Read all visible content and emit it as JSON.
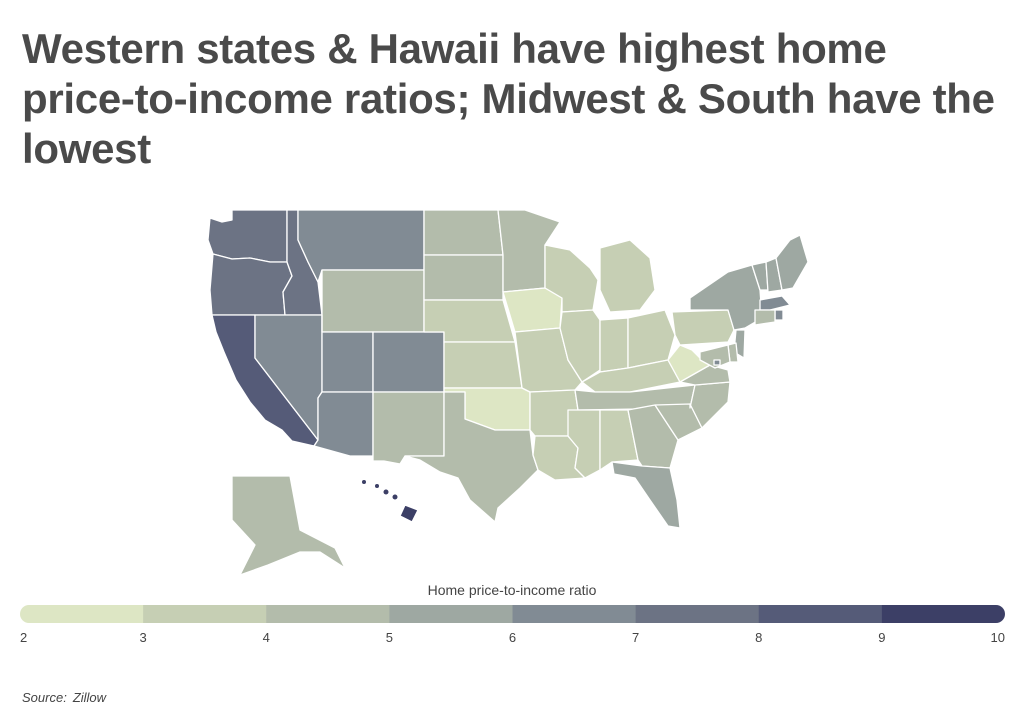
{
  "title": "Western states & Hawaii have highest home price-to-income ratios; Midwest & South have the lowest",
  "legend": {
    "title": "Home price-to-income ratio",
    "ticks": [
      "2",
      "3",
      "4",
      "5",
      "6",
      "7",
      "8",
      "9",
      "10"
    ]
  },
  "source": {
    "label": "Source:",
    "value": "Zillow"
  },
  "colors": {
    "scale": [
      "#dde6c4",
      "#c6cfb4",
      "#b3bcab",
      "#9ea8a2",
      "#818b94",
      "#6c7384",
      "#555b78",
      "#3c3f66"
    ],
    "border": "#ffffff"
  },
  "chart_data": {
    "type": "choropleth",
    "title": "Western states & Hawaii have highest home price-to-income ratios; Midwest & South have the lowest",
    "metric": "Home price-to-income ratio",
    "scale_range": [
      2,
      10
    ],
    "bins": [
      [
        2,
        3
      ],
      [
        3,
        4
      ],
      [
        4,
        5
      ],
      [
        5,
        6
      ],
      [
        6,
        7
      ],
      [
        7,
        8
      ],
      [
        8,
        9
      ],
      [
        9,
        10
      ]
    ],
    "states": [
      {
        "state": "WA",
        "value": 7.4
      },
      {
        "state": "OR",
        "value": 7.3
      },
      {
        "state": "CA",
        "value": 8.8
      },
      {
        "state": "ID",
        "value": 7.5
      },
      {
        "state": "NV",
        "value": 6.4
      },
      {
        "state": "MT",
        "value": 6.6
      },
      {
        "state": "WY",
        "value": 4.6
      },
      {
        "state": "UT",
        "value": 6.8
      },
      {
        "state": "CO",
        "value": 6.8
      },
      {
        "state": "AZ",
        "value": 6.2
      },
      {
        "state": "NM",
        "value": 4.6
      },
      {
        "state": "ND",
        "value": 4.2
      },
      {
        "state": "SD",
        "value": 4.3
      },
      {
        "state": "NE",
        "value": 3.6
      },
      {
        "state": "KS",
        "value": 3.4
      },
      {
        "state": "OK",
        "value": 2.9
      },
      {
        "state": "TX",
        "value": 4.6
      },
      {
        "state": "MN",
        "value": 4.4
      },
      {
        "state": "IA",
        "value": 2.9
      },
      {
        "state": "MO",
        "value": 3.5
      },
      {
        "state": "AR",
        "value": 3.5
      },
      {
        "state": "LA",
        "value": 3.3
      },
      {
        "state": "WI",
        "value": 3.7
      },
      {
        "state": "IL",
        "value": 3.3
      },
      {
        "state": "MI",
        "value": 3.4
      },
      {
        "state": "IN",
        "value": 3.3
      },
      {
        "state": "OH",
        "value": 3.1
      },
      {
        "state": "KY",
        "value": 3.4
      },
      {
        "state": "TN",
        "value": 4.7
      },
      {
        "state": "MS",
        "value": 3.2
      },
      {
        "state": "AL",
        "value": 3.5
      },
      {
        "state": "GA",
        "value": 4.5
      },
      {
        "state": "FL",
        "value": 5.8
      },
      {
        "state": "SC",
        "value": 4.5
      },
      {
        "state": "NC",
        "value": 4.5
      },
      {
        "state": "VA",
        "value": 4.6
      },
      {
        "state": "WV",
        "value": 2.7
      },
      {
        "state": "PA",
        "value": 3.6
      },
      {
        "state": "NY",
        "value": 5.4
      },
      {
        "state": "VT",
        "value": 5.4
      },
      {
        "state": "NH",
        "value": 5.6
      },
      {
        "state": "ME",
        "value": 5.4
      },
      {
        "state": "MA",
        "value": 6.6
      },
      {
        "state": "RI",
        "value": 6.0
      },
      {
        "state": "CT",
        "value": 4.7
      },
      {
        "state": "NJ",
        "value": 5.6
      },
      {
        "state": "DE",
        "value": 4.4
      },
      {
        "state": "MD",
        "value": 4.6
      },
      {
        "state": "DC",
        "value": 6.2
      },
      {
        "state": "AK",
        "value": 4.6
      },
      {
        "state": "HI",
        "value": 9.6
      }
    ]
  }
}
